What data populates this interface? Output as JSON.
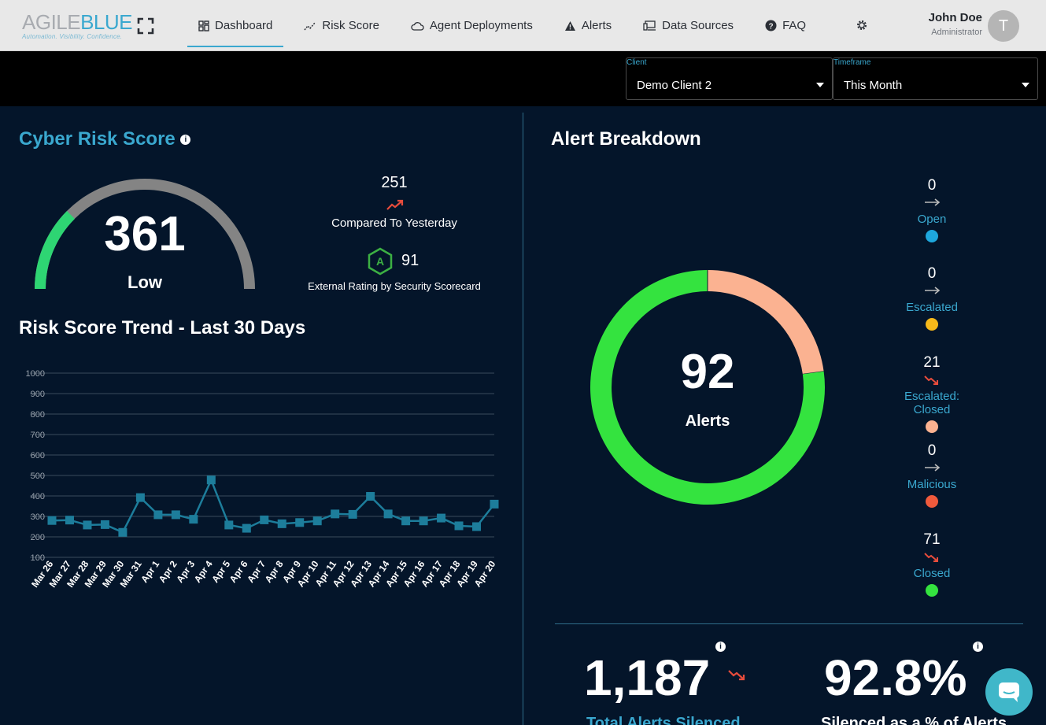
{
  "app": {
    "logo_part1": "AGILE",
    "logo_part2": "BLUE",
    "tagline": "Automation. Visibility. Confidence."
  },
  "nav": [
    {
      "label": "Dashboard",
      "icon": "dashboard-icon",
      "active": true
    },
    {
      "label": "Risk Score",
      "icon": "trend-icon"
    },
    {
      "label": "Agent Deployments",
      "icon": "cloud-icon"
    },
    {
      "label": "Alerts",
      "icon": "warning-icon"
    },
    {
      "label": "Data Sources",
      "icon": "devices-icon"
    },
    {
      "label": "FAQ",
      "icon": "help-icon"
    }
  ],
  "user": {
    "name": "John Doe",
    "role": "Administrator",
    "initial": "T"
  },
  "filters": {
    "client": {
      "label": "Client",
      "value": "Demo Client 2"
    },
    "timeframe": {
      "label": "Timeframe",
      "value": "This Month"
    }
  },
  "risk": {
    "title": "Cyber Risk Score",
    "score": "361",
    "level": "Low",
    "gauge_fraction": 0.25,
    "compared_value": "251",
    "compared_label": "Compared To Yesterday",
    "external_grade": "A",
    "external_value": "91",
    "external_label": "External Rating by Security Scorecard"
  },
  "trend": {
    "title": "Risk Score Trend - Last 30 Days"
  },
  "alerts": {
    "title": "Alert Breakdown",
    "total": "92",
    "total_label": "Alerts",
    "legend": [
      {
        "count": "0",
        "label": "Open",
        "arrow": "flat",
        "color": "#1ea7dd"
      },
      {
        "count": "0",
        "label": "Escalated",
        "arrow": "flat",
        "color": "#f6b91a"
      },
      {
        "count": "21",
        "label": "Escalated: Closed",
        "arrow": "down",
        "color": "#fbb291"
      },
      {
        "count": "0",
        "label": "Malicious",
        "arrow": "flat",
        "color": "#f05a3c"
      },
      {
        "count": "71",
        "label": "Closed",
        "arrow": "down",
        "color": "#34e33f"
      }
    ]
  },
  "stats": {
    "silenced_total": "1,187",
    "silenced_total_label": "Total Alerts Silenced",
    "silenced_pct": "92.8%",
    "silenced_pct_label": "Silenced as a % of Alerts"
  },
  "chart_data": [
    {
      "type": "line",
      "title": "Risk Score Trend - Last 30 Days",
      "categories": [
        "Mar 26",
        "Mar 27",
        "Mar 28",
        "Mar 29",
        "Mar 30",
        "Mar 31",
        "Apr 1",
        "Apr 2",
        "Apr 3",
        "Apr 4",
        "Apr 5",
        "Apr 6",
        "Apr 7",
        "Apr 8",
        "Apr 9",
        "Apr 10",
        "Apr 11",
        "Apr 12",
        "Apr 13",
        "Apr 14",
        "Apr 15",
        "Apr 16",
        "Apr 17",
        "Apr 18",
        "Apr 19",
        "Apr 20"
      ],
      "values": [
        280,
        282,
        258,
        260,
        222,
        392,
        308,
        308,
        286,
        478,
        258,
        242,
        283,
        264,
        270,
        278,
        312,
        310,
        398,
        312,
        278,
        278,
        292,
        254,
        250,
        360
      ],
      "ylim": [
        100,
        1000
      ],
      "yticks": [
        100,
        200,
        300,
        400,
        500,
        600,
        700,
        800,
        900,
        1000
      ],
      "grid": true,
      "color": "#1d7d9b"
    },
    {
      "type": "pie",
      "categories": [
        "Open",
        "Escalated",
        "Escalated: Closed",
        "Malicious",
        "Closed"
      ],
      "values": [
        0,
        0,
        21,
        0,
        71
      ],
      "colors": [
        "#1ea7dd",
        "#f6b91a",
        "#fbb291",
        "#f05a3c",
        "#34e33f"
      ]
    }
  ]
}
